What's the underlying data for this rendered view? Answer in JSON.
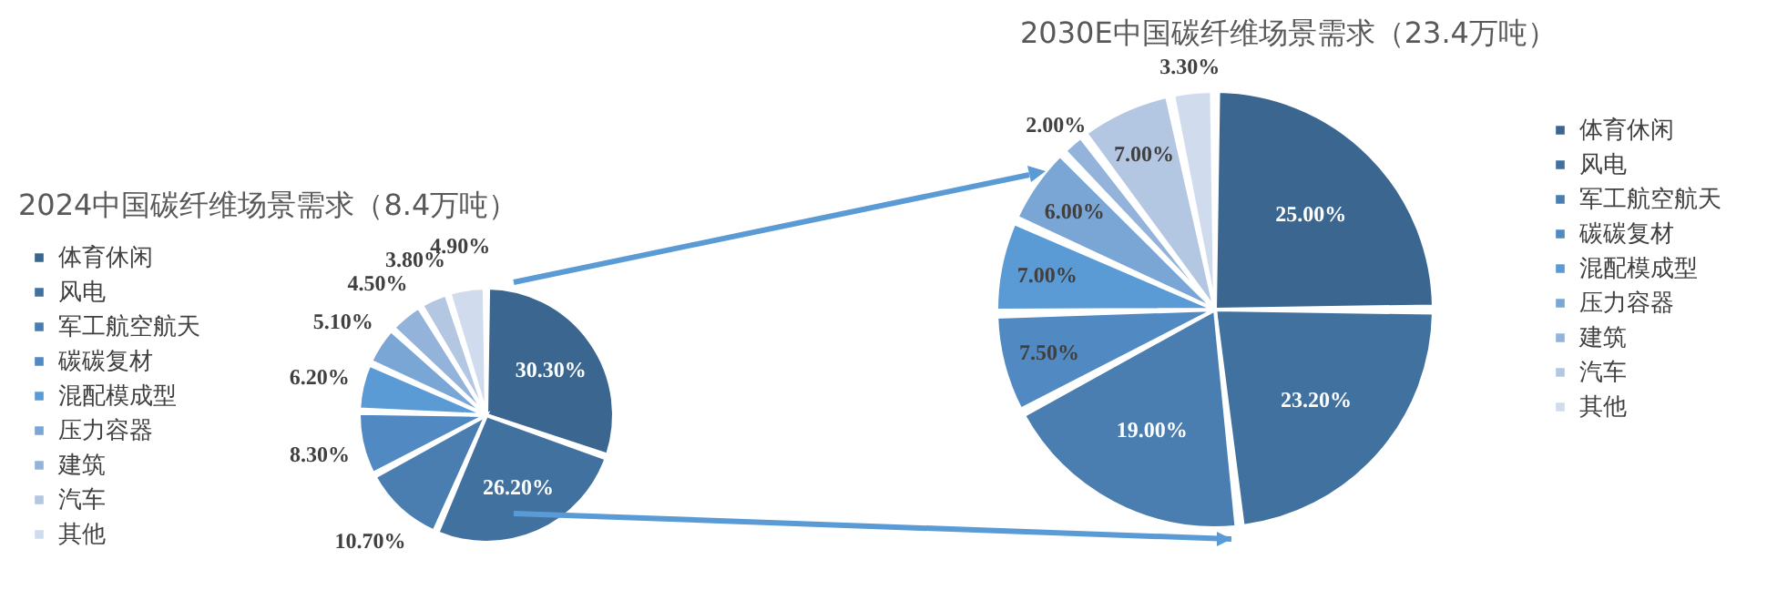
{
  "chart_data": [
    {
      "type": "pie",
      "title": "2024中国碳纤维场景需求（8.4万吨）",
      "legend": "left",
      "categories": [
        "体育休闲",
        "风电",
        "军工航空航天",
        "碳碳复材",
        "混配模成型",
        "压力容器",
        "建筑",
        "汽车",
        "其他"
      ],
      "values": [
        30.3,
        26.2,
        10.7,
        8.3,
        6.2,
        5.1,
        4.5,
        3.8,
        4.9
      ],
      "value_labels": [
        "30.30%",
        "26.20%",
        "10.70%",
        "8.30%",
        "6.20%",
        "5.10%",
        "4.50%",
        "3.80%",
        "4.90%"
      ],
      "colors": [
        "#3b6690",
        "#41719f",
        "#4a7eb1",
        "#5189c2",
        "#5b9bd5",
        "#7aa6d6",
        "#93b3da",
        "#b3c7e3",
        "#d0dcee"
      ]
    },
    {
      "type": "pie",
      "title": "2030E中国碳纤维场景需求（23.4万吨）",
      "legend": "right",
      "categories": [
        "体育休闲",
        "风电",
        "军工航空航天",
        "碳碳复材",
        "混配模成型",
        "压力容器",
        "建筑",
        "汽车",
        "其他"
      ],
      "values": [
        25.0,
        23.2,
        19.0,
        7.5,
        7.0,
        6.0,
        2.0,
        7.0,
        3.3
      ],
      "value_labels": [
        "25.00%",
        "23.20%",
        "19.00%",
        "7.50%",
        "7.00%",
        "6.00%",
        "2.00%",
        "7.00%",
        "3.30%"
      ],
      "colors": [
        "#3b6690",
        "#41719f",
        "#4a7eb1",
        "#5189c2",
        "#5b9bd5",
        "#7aa6d6",
        "#93b3da",
        "#b3c7e3",
        "#d0dcee"
      ]
    }
  ]
}
